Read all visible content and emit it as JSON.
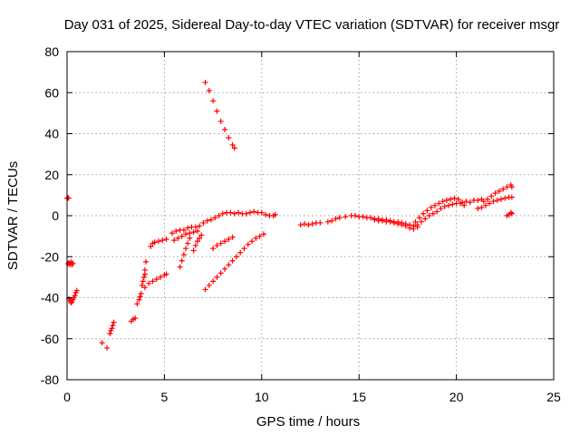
{
  "chart_data": {
    "type": "scatter",
    "title": "Day 031 of 2025, Sidereal Day-to-day VTEC variation (SDTVAR) for receiver msgr",
    "xlabel": "GPS time / hours",
    "ylabel": "SDTVAR / TECUs",
    "xlim": [
      0,
      25
    ],
    "ylim": [
      -80,
      80
    ],
    "x_ticks": [
      "0",
      "5",
      "10",
      "15",
      "20",
      "25"
    ],
    "y_ticks": [
      "80",
      "60",
      "40",
      "20",
      "0",
      "-20",
      "-40",
      "-60",
      "-80"
    ],
    "x_tick_values": [
      0,
      5,
      10,
      15,
      20,
      25
    ],
    "y_tick_values": [
      80,
      60,
      40,
      20,
      0,
      -20,
      -40,
      -60,
      -80
    ],
    "grid": true,
    "marker": "+",
    "color": "#ff0000",
    "series": [
      {
        "values": [
          [
            0.0,
            8.5
          ],
          [
            0.05,
            8.7
          ],
          [
            0.08,
            8.6
          ],
          [
            0.05,
            -23.5
          ],
          [
            0.1,
            -23.0
          ],
          [
            0.15,
            -23.8
          ],
          [
            0.2,
            -22.5
          ],
          [
            0.25,
            -24.0
          ],
          [
            0.3,
            -23.2
          ],
          [
            0.1,
            -40.5
          ],
          [
            0.15,
            -41.5
          ],
          [
            0.2,
            -42.5
          ],
          [
            0.25,
            -42.0
          ],
          [
            0.3,
            -41.0
          ],
          [
            0.35,
            -40.0
          ],
          [
            0.4,
            -39.0
          ],
          [
            0.45,
            -37.5
          ],
          [
            0.5,
            -36.5
          ],
          [
            1.8,
            -62.0
          ],
          [
            2.05,
            -64.5
          ],
          [
            2.2,
            -57.5
          ],
          [
            2.25,
            -56.0
          ],
          [
            2.3,
            -55.0
          ],
          [
            2.35,
            -53.5
          ],
          [
            2.4,
            -52.0
          ],
          [
            3.3,
            -51.5
          ],
          [
            3.4,
            -50.5
          ],
          [
            3.5,
            -50.0
          ],
          [
            3.6,
            -43.0
          ],
          [
            3.7,
            -41.0
          ],
          [
            3.75,
            -39.5
          ],
          [
            3.8,
            -38.0
          ],
          [
            3.85,
            -34.0
          ],
          [
            3.9,
            -32.0
          ],
          [
            3.95,
            -30.0
          ],
          [
            4.0,
            -28.5
          ],
          [
            4.0,
            -26.5
          ],
          [
            4.05,
            -22.5
          ],
          [
            4.0,
            -35.0
          ],
          [
            4.2,
            -33.0
          ],
          [
            4.4,
            -32.0
          ],
          [
            4.6,
            -31.0
          ],
          [
            4.8,
            -30.0
          ],
          [
            5.0,
            -29.0
          ],
          [
            5.1,
            -28.5
          ],
          [
            4.3,
            -15.0
          ],
          [
            4.4,
            -13.5
          ],
          [
            4.5,
            -13.0
          ],
          [
            4.7,
            -12.5
          ],
          [
            4.9,
            -12.0
          ],
          [
            5.1,
            -11.5
          ],
          [
            5.4,
            -8.5
          ],
          [
            5.6,
            -7.5
          ],
          [
            5.8,
            -7.0
          ],
          [
            6.0,
            -7.0
          ],
          [
            6.2,
            -6.0
          ],
          [
            6.4,
            -5.5
          ],
          [
            6.6,
            -5.5
          ],
          [
            6.8,
            -5.0
          ],
          [
            5.5,
            -12.0
          ],
          [
            5.7,
            -11.0
          ],
          [
            5.9,
            -10.0
          ],
          [
            6.1,
            -9.0
          ],
          [
            6.3,
            -8.5
          ],
          [
            6.5,
            -8.0
          ],
          [
            6.7,
            -7.5
          ],
          [
            5.8,
            -25.0
          ],
          [
            5.9,
            -22.0
          ],
          [
            6.0,
            -19.0
          ],
          [
            6.1,
            -16.0
          ],
          [
            6.2,
            -13.5
          ],
          [
            6.3,
            -11.0
          ],
          [
            6.5,
            -17.0
          ],
          [
            6.6,
            -14.5
          ],
          [
            6.7,
            -12.5
          ],
          [
            6.8,
            -11.0
          ],
          [
            6.9,
            -9.5
          ],
          [
            7.1,
            -36.0
          ],
          [
            7.3,
            -34.0
          ],
          [
            7.5,
            -32.0
          ],
          [
            7.7,
            -30.0
          ],
          [
            7.9,
            -28.0
          ],
          [
            8.1,
            -26.0
          ],
          [
            8.3,
            -24.0
          ],
          [
            8.5,
            -22.0
          ],
          [
            8.7,
            -20.0
          ],
          [
            8.9,
            -18.0
          ],
          [
            9.1,
            -16.0
          ],
          [
            9.3,
            -14.0
          ],
          [
            9.5,
            -12.5
          ],
          [
            9.7,
            -11.0
          ],
          [
            9.9,
            -10.0
          ],
          [
            10.1,
            -9.0
          ],
          [
            7.5,
            -16.0
          ],
          [
            7.7,
            -14.5
          ],
          [
            7.9,
            -13.5
          ],
          [
            8.1,
            -12.5
          ],
          [
            8.3,
            -11.5
          ],
          [
            8.5,
            -10.5
          ],
          [
            7.0,
            -3.5
          ],
          [
            7.2,
            -2.5
          ],
          [
            7.4,
            -2.0
          ],
          [
            7.6,
            -1.0
          ],
          [
            7.8,
            0.0
          ],
          [
            8.0,
            1.0
          ],
          [
            8.2,
            1.5
          ],
          [
            8.4,
            1.5
          ],
          [
            8.6,
            1.0
          ],
          [
            8.8,
            1.5
          ],
          [
            9.0,
            1.0
          ],
          [
            9.2,
            1.0
          ],
          [
            9.4,
            1.5
          ],
          [
            9.6,
            2.0
          ],
          [
            9.8,
            1.5
          ],
          [
            10.0,
            1.5
          ],
          [
            10.2,
            0.5
          ],
          [
            10.4,
            0.0
          ],
          [
            10.6,
            0.0
          ],
          [
            10.7,
            0.5
          ],
          [
            7.1,
            65.0
          ],
          [
            7.3,
            61.0
          ],
          [
            7.5,
            56.0
          ],
          [
            7.7,
            51.0
          ],
          [
            7.9,
            46.0
          ],
          [
            8.1,
            42.0
          ],
          [
            8.3,
            38.0
          ],
          [
            8.5,
            34.5
          ],
          [
            8.6,
            33.0
          ],
          [
            12.0,
            -4.5
          ],
          [
            12.2,
            -4.0
          ],
          [
            12.4,
            -4.5
          ],
          [
            12.6,
            -4.0
          ],
          [
            12.8,
            -3.5
          ],
          [
            13.0,
            -3.5
          ],
          [
            13.4,
            -3.0
          ],
          [
            13.6,
            -2.5
          ],
          [
            13.8,
            -1.5
          ],
          [
            14.0,
            -1.0
          ],
          [
            14.3,
            -0.5
          ],
          [
            14.6,
            0.0
          ],
          [
            14.8,
            0.0
          ],
          [
            15.0,
            -0.5
          ],
          [
            15.2,
            -0.5
          ],
          [
            15.4,
            -1.0
          ],
          [
            15.6,
            -1.0
          ],
          [
            15.8,
            -1.5
          ],
          [
            16.0,
            -1.5
          ],
          [
            16.2,
            -2.0
          ],
          [
            16.4,
            -2.0
          ],
          [
            16.6,
            -2.5
          ],
          [
            16.8,
            -3.0
          ],
          [
            17.0,
            -3.0
          ],
          [
            17.2,
            -3.5
          ],
          [
            17.4,
            -4.0
          ],
          [
            17.6,
            -4.5
          ],
          [
            17.8,
            -5.0
          ],
          [
            15.8,
            -2.0
          ],
          [
            16.0,
            -2.5
          ],
          [
            16.2,
            -2.5
          ],
          [
            16.4,
            -3.0
          ],
          [
            16.6,
            -3.0
          ],
          [
            16.8,
            -3.5
          ],
          [
            17.0,
            -4.0
          ],
          [
            17.2,
            -4.5
          ],
          [
            17.4,
            -5.0
          ],
          [
            17.6,
            -6.0
          ],
          [
            17.8,
            -6.5
          ],
          [
            18.0,
            -5.5
          ],
          [
            17.9,
            -3.0
          ],
          [
            18.1,
            -1.0
          ],
          [
            18.3,
            1.0
          ],
          [
            18.5,
            2.5
          ],
          [
            18.7,
            4.0
          ],
          [
            18.9,
            5.0
          ],
          [
            19.1,
            6.0
          ],
          [
            19.3,
            7.0
          ],
          [
            19.5,
            7.5
          ],
          [
            19.7,
            8.0
          ],
          [
            19.9,
            8.5
          ],
          [
            20.1,
            8.0
          ],
          [
            18.0,
            -4.5
          ],
          [
            18.2,
            -3.0
          ],
          [
            18.4,
            -1.5
          ],
          [
            18.6,
            0.0
          ],
          [
            18.8,
            1.0
          ],
          [
            19.0,
            2.0
          ],
          [
            19.2,
            3.5
          ],
          [
            19.4,
            4.5
          ],
          [
            19.6,
            5.0
          ],
          [
            19.8,
            5.5
          ],
          [
            20.0,
            6.0
          ],
          [
            20.2,
            6.0
          ],
          [
            20.4,
            5.0
          ],
          [
            20.3,
            6.5
          ],
          [
            20.5,
            7.0
          ],
          [
            20.7,
            6.5
          ],
          [
            20.9,
            7.5
          ],
          [
            21.1,
            7.5
          ],
          [
            21.3,
            8.0
          ],
          [
            21.1,
            3.5
          ],
          [
            21.3,
            4.0
          ],
          [
            21.5,
            5.0
          ],
          [
            21.7,
            6.0
          ],
          [
            21.9,
            7.0
          ],
          [
            22.1,
            7.5
          ],
          [
            22.3,
            8.0
          ],
          [
            22.5,
            8.5
          ],
          [
            22.7,
            9.0
          ],
          [
            22.85,
            9.0
          ],
          [
            21.4,
            7.0
          ],
          [
            21.6,
            8.0
          ],
          [
            21.8,
            9.5
          ],
          [
            22.0,
            11.0
          ],
          [
            22.2,
            12.0
          ],
          [
            22.4,
            13.0
          ],
          [
            22.6,
            14.0
          ],
          [
            22.8,
            15.0
          ],
          [
            22.85,
            14.0
          ],
          [
            22.6,
            0.0
          ],
          [
            22.7,
            0.5
          ],
          [
            22.8,
            1.5
          ],
          [
            22.85,
            1.0
          ]
        ]
      }
    ]
  }
}
